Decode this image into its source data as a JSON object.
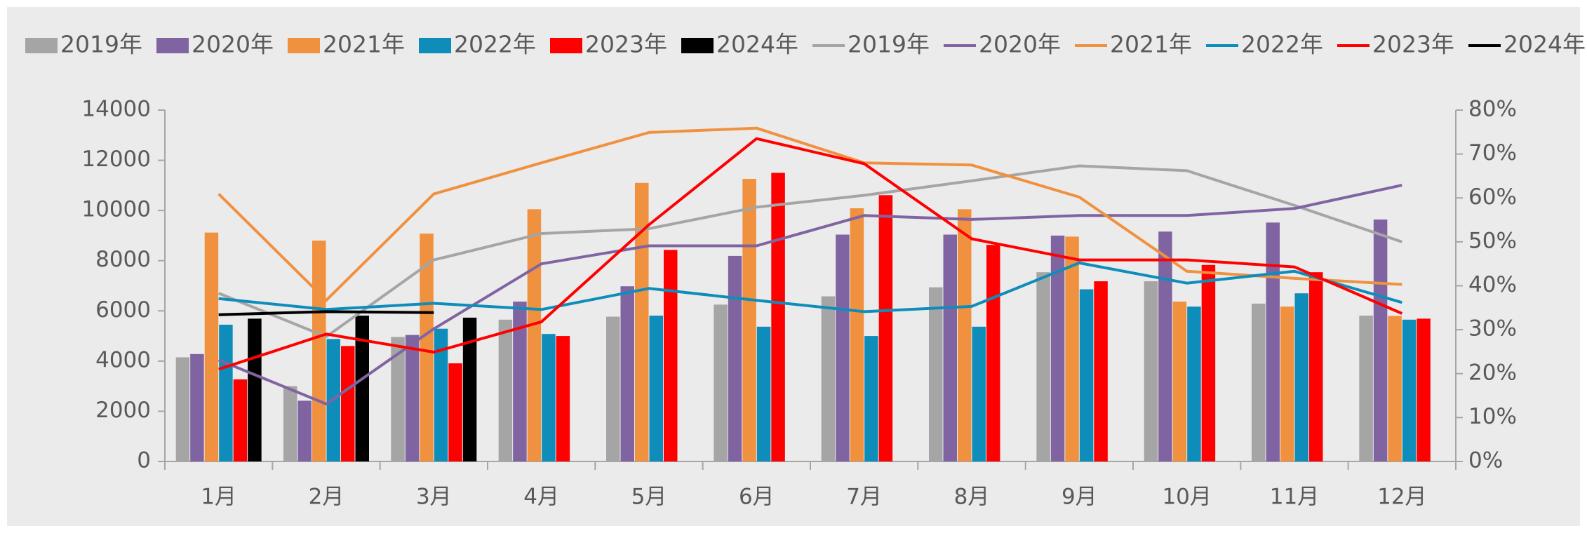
{
  "chart_data": {
    "type": "bar",
    "categories": [
      "1月",
      "2月",
      "3月",
      "4月",
      "5月",
      "6月",
      "7月",
      "8月",
      "9月",
      "10月",
      "11月",
      "12月"
    ],
    "ylim": [
      0,
      14000
    ],
    "yticks": [
      0,
      2000,
      4000,
      6000,
      8000,
      10000,
      12000,
      14000
    ],
    "y2lim": [
      0,
      80
    ],
    "y2ticks": [
      {
        "value": 0,
        "label": "0%"
      },
      {
        "value": 10,
        "label": "10%"
      },
      {
        "value": 20,
        "label": "20%"
      },
      {
        "value": 30,
        "label": "30%"
      },
      {
        "value": 40,
        "label": "40%"
      },
      {
        "value": 50,
        "label": "50%"
      },
      {
        "value": 60,
        "label": "60%"
      },
      {
        "value": 70,
        "label": "70%"
      },
      {
        "value": 80,
        "label": "80%"
      }
    ],
    "grid": false,
    "legend": "top",
    "series": [
      {
        "name": "2019年",
        "type": "bar",
        "color": "#a5a5a5",
        "values": [
          4150,
          3000,
          4960,
          5650,
          5770,
          6250,
          6580,
          6940,
          7540,
          7180,
          6290,
          5810
        ]
      },
      {
        "name": "2020年",
        "type": "bar",
        "color": "#8064a2",
        "values": [
          4280,
          2420,
          5040,
          6370,
          6980,
          8190,
          9040,
          9040,
          9000,
          9160,
          9520,
          9640
        ]
      },
      {
        "name": "2021年",
        "type": "bar",
        "color": "#f0913f",
        "values": [
          9120,
          8800,
          9080,
          10050,
          11100,
          11260,
          10090,
          10050,
          8960,
          6370,
          6170,
          5800
        ]
      },
      {
        "name": "2022年",
        "type": "bar",
        "color": "#0f8dba",
        "values": [
          5450,
          4880,
          5290,
          5080,
          5810,
          5370,
          5000,
          5370,
          6860,
          6170,
          6700,
          5650
        ]
      },
      {
        "name": "2023年",
        "type": "bar",
        "color": "#ff0000",
        "values": [
          3270,
          4600,
          3910,
          5000,
          8430,
          11500,
          10610,
          8630,
          7180,
          7830,
          7540,
          5690
        ]
      },
      {
        "name": "2024年",
        "type": "bar",
        "color": "#000000",
        "values": [
          5690,
          5810,
          5730,
          null,
          null,
          null,
          null,
          null,
          null,
          null,
          null,
          null
        ]
      },
      {
        "name": "2019年",
        "type": "line",
        "axis": "y2",
        "color": "#a5a5a5",
        "values": [
          38.3,
          28.4,
          45.9,
          51.9,
          53.0,
          57.9,
          60.6,
          63.9,
          67.3,
          66.2,
          58.3,
          50.0
        ]
      },
      {
        "name": "2020年",
        "type": "line",
        "axis": "y2",
        "color": "#8064a2",
        "values": [
          23.1,
          13.1,
          30.2,
          45.0,
          49.1,
          49.1,
          56.0,
          55.1,
          56.0,
          56.0,
          57.6,
          62.9
        ]
      },
      {
        "name": "2021年",
        "type": "line",
        "axis": "y2",
        "color": "#f0913f",
        "values": [
          60.9,
          36.7,
          60.9,
          68.0,
          74.9,
          75.9,
          68.0,
          67.5,
          60.2,
          43.3,
          41.7,
          40.3
        ]
      },
      {
        "name": "2022年",
        "type": "line",
        "axis": "y2",
        "color": "#0f8dba",
        "values": [
          37.1,
          34.6,
          36.0,
          34.6,
          39.4,
          36.7,
          34.1,
          35.3,
          45.2,
          40.6,
          43.3,
          36.2
        ]
      },
      {
        "name": "2023年",
        "type": "line",
        "axis": "y2",
        "color": "#ff0000",
        "values": [
          21.0,
          29.0,
          24.9,
          31.8,
          53.9,
          73.5,
          67.8,
          50.7,
          45.9,
          45.9,
          44.3,
          33.7
        ]
      },
      {
        "name": "2024年",
        "type": "line",
        "axis": "y2",
        "color": "#000000",
        "values": [
          33.4,
          34.1,
          33.9,
          null,
          null,
          null,
          null,
          null,
          null,
          null,
          null,
          null
        ]
      }
    ]
  }
}
